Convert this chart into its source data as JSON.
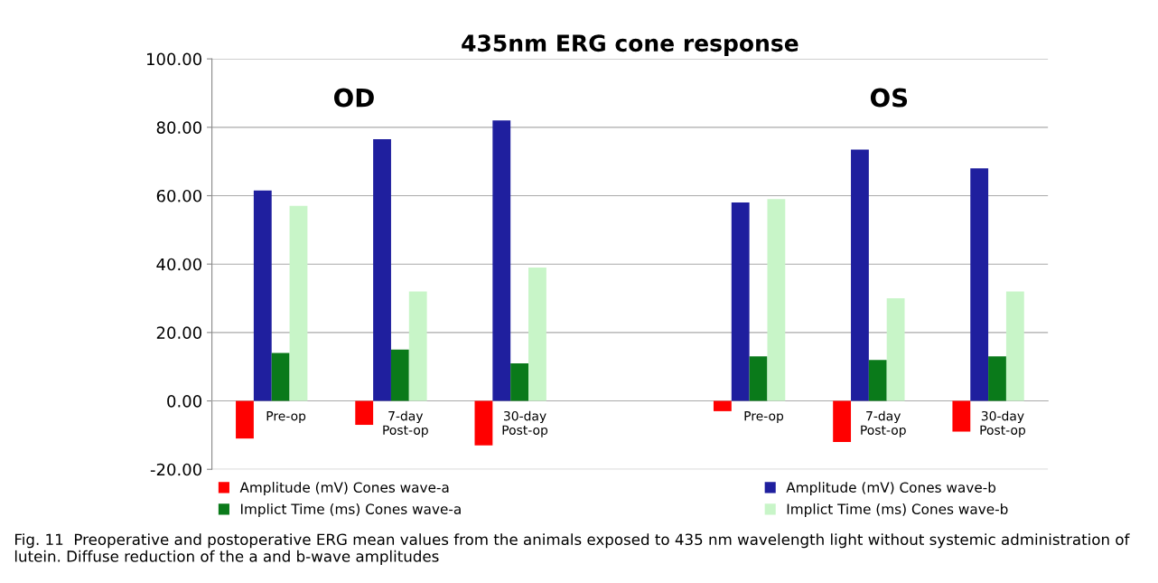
{
  "chart_data": {
    "type": "bar",
    "title": "435nm ERG cone response",
    "categories": [
      "Pre-op",
      "7-day\nPost-op",
      "30-day\nPost-op",
      null,
      "Pre-op",
      "7-day\nPost-op",
      "30-day\nPost-op"
    ],
    "series": [
      {
        "name": "Amplitude (mV) Cones wave-a",
        "color": "#ff0000",
        "values": [
          -11,
          -7,
          -13,
          null,
          -3,
          -12,
          -9
        ]
      },
      {
        "name": "Amplitude (mV) Cones wave-b",
        "color": "#1f1f9e",
        "values": [
          61.5,
          76.5,
          82,
          null,
          58,
          73.5,
          68
        ]
      },
      {
        "name": "Implict Time (ms) Cones wave-a",
        "color": "#0a7a1a",
        "values": [
          14,
          15,
          11,
          null,
          13,
          12,
          13
        ]
      },
      {
        "name": "Implict Time (ms) Cones wave-b",
        "color": "#c8f5c8",
        "values": [
          57,
          32,
          39,
          null,
          59,
          30,
          32
        ]
      }
    ],
    "ylim": [
      -20,
      100
    ],
    "yticks": [
      {
        "value": -20,
        "label": "-20.00"
      },
      {
        "value": 0,
        "label": "0.00"
      },
      {
        "value": 20,
        "label": "20.00"
      },
      {
        "value": 40,
        "label": "40.00"
      },
      {
        "value": 60,
        "label": "60.00"
      },
      {
        "value": 80,
        "label": "80.00"
      },
      {
        "value": 100,
        "label": "100.00"
      }
    ],
    "grid": "y",
    "legend": "bottom",
    "annotations": [
      "OD",
      "OS",
      "Fig. 11  Preoperative and postoperative ERG mean values from the animals exposed to 435 nm wavelength light without systemic administration of lutein. Diffuse reduction of the a and b-wave amplitudes"
    ]
  }
}
